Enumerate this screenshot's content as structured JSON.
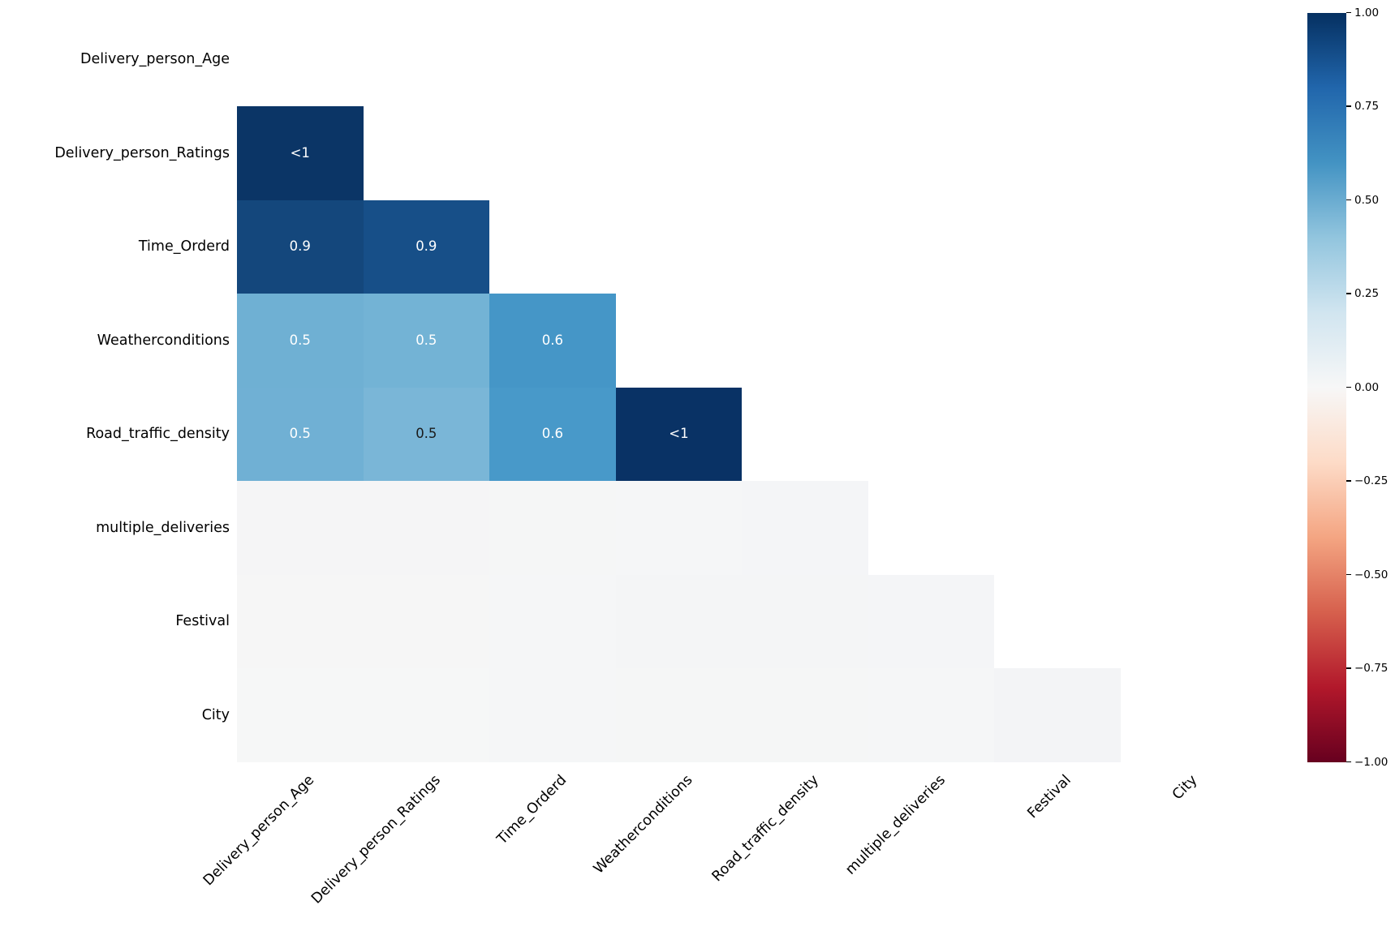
{
  "figure": {
    "background": "#ffffff",
    "description": "Lower-triangle correlation heatmap of delivery dataset features"
  },
  "chart_data": {
    "type": "heatmap",
    "title": "",
    "xlabel": "",
    "ylabel": "",
    "variables": [
      "Delivery_person_Age",
      "Delivery_person_Ratings",
      "Time_Orderd",
      "Weatherconditions",
      "Road_traffic_density",
      "multiple_deliveries",
      "Festival",
      "City"
    ],
    "mask": "upper triangle and diagonal hidden; only cells below the diagonal are drawn",
    "grid": {
      "rows": 8,
      "cols": 8
    },
    "colormap": {
      "name": "RdBu",
      "stops": [
        "#053061",
        "#2166ac",
        "#4393c3",
        "#92c5de",
        "#d1e5f0",
        "#f7f7f7",
        "#fddbc7",
        "#f4a582",
        "#d6604d",
        "#b2182b",
        "#67001f"
      ]
    },
    "colorbar": {
      "vmin": -1.0,
      "vmax": 1.0,
      "position": "right",
      "tick_labels": [
        "1.00",
        "0.75",
        "0.50",
        "0.25",
        "0.00",
        "−0.25",
        "−0.50",
        "−0.75",
        "−1.00"
      ]
    },
    "cells": [
      {
        "row": 1,
        "col": 0,
        "row_var": "Delivery_person_Ratings",
        "col_var": "Delivery_person_Age",
        "label": "<1",
        "color": "#0b3566",
        "text_color": "#ffffff"
      },
      {
        "row": 2,
        "col": 0,
        "row_var": "Time_Orderd",
        "col_var": "Delivery_person_Age",
        "label": "0.9",
        "color": "#14477c",
        "text_color": "#ffffff"
      },
      {
        "row": 2,
        "col": 1,
        "row_var": "Time_Orderd",
        "col_var": "Delivery_person_Ratings",
        "label": "0.9",
        "color": "#174f88",
        "text_color": "#ffffff"
      },
      {
        "row": 3,
        "col": 0,
        "row_var": "Weatherconditions",
        "col_var": "Delivery_person_Age",
        "label": "0.5",
        "color": "#6fb0d3",
        "text_color": "#ffffff"
      },
      {
        "row": 3,
        "col": 1,
        "row_var": "Weatherconditions",
        "col_var": "Delivery_person_Ratings",
        "label": "0.5",
        "color": "#73b3d5",
        "text_color": "#ffffff"
      },
      {
        "row": 3,
        "col": 2,
        "row_var": "Weatherconditions",
        "col_var": "Time_Orderd",
        "label": "0.6",
        "color": "#4596c7",
        "text_color": "#ffffff"
      },
      {
        "row": 4,
        "col": 0,
        "row_var": "Road_traffic_density",
        "col_var": "Delivery_person_Age",
        "label": "0.5",
        "color": "#70b0d4",
        "text_color": "#ffffff"
      },
      {
        "row": 4,
        "col": 1,
        "row_var": "Road_traffic_density",
        "col_var": "Delivery_person_Ratings",
        "label": "0.5",
        "color": "#7ab6d7",
        "text_color": "#1a1a1a"
      },
      {
        "row": 4,
        "col": 2,
        "row_var": "Road_traffic_density",
        "col_var": "Time_Orderd",
        "label": "0.6",
        "color": "#4899c9",
        "text_color": "#ffffff"
      },
      {
        "row": 4,
        "col": 3,
        "row_var": "Road_traffic_density",
        "col_var": "Weatherconditions",
        "label": "<1",
        "color": "#093265",
        "text_color": "#ffffff"
      },
      {
        "row": 5,
        "col": 0,
        "row_var": "multiple_deliveries",
        "col_var": "Delivery_person_Age",
        "label": "",
        "color": "#f5f5f6"
      },
      {
        "row": 5,
        "col": 1,
        "row_var": "multiple_deliveries",
        "col_var": "Delivery_person_Ratings",
        "label": "",
        "color": "#f5f5f6"
      },
      {
        "row": 5,
        "col": 2,
        "row_var": "multiple_deliveries",
        "col_var": "Time_Orderd",
        "label": "",
        "color": "#f5f6f6"
      },
      {
        "row": 5,
        "col": 3,
        "row_var": "multiple_deliveries",
        "col_var": "Weatherconditions",
        "label": "",
        "color": "#f5f6f7"
      },
      {
        "row": 5,
        "col": 4,
        "row_var": "multiple_deliveries",
        "col_var": "Road_traffic_density",
        "label": "",
        "color": "#f4f5f7"
      },
      {
        "row": 6,
        "col": 0,
        "row_var": "Festival",
        "col_var": "Delivery_person_Age",
        "label": "",
        "color": "#f6f6f6"
      },
      {
        "row": 6,
        "col": 1,
        "row_var": "Festival",
        "col_var": "Delivery_person_Ratings",
        "label": "",
        "color": "#f6f6f6"
      },
      {
        "row": 6,
        "col": 2,
        "row_var": "Festival",
        "col_var": "Time_Orderd",
        "label": "",
        "color": "#f5f6f7"
      },
      {
        "row": 6,
        "col": 3,
        "row_var": "Festival",
        "col_var": "Weatherconditions",
        "label": "",
        "color": "#f4f5f6"
      },
      {
        "row": 6,
        "col": 4,
        "row_var": "Festival",
        "col_var": "Road_traffic_density",
        "label": "",
        "color": "#f4f5f6"
      },
      {
        "row": 6,
        "col": 5,
        "row_var": "Festival",
        "col_var": "multiple_deliveries",
        "label": "",
        "color": "#f4f5f7"
      },
      {
        "row": 7,
        "col": 0,
        "row_var": "City",
        "col_var": "Delivery_person_Age",
        "label": "",
        "color": "#f6f7f7"
      },
      {
        "row": 7,
        "col": 1,
        "row_var": "City",
        "col_var": "Delivery_person_Ratings",
        "label": "",
        "color": "#f6f7f7"
      },
      {
        "row": 7,
        "col": 2,
        "row_var": "City",
        "col_var": "Time_Orderd",
        "label": "",
        "color": "#f5f6f7"
      },
      {
        "row": 7,
        "col": 3,
        "row_var": "City",
        "col_var": "Weatherconditions",
        "label": "",
        "color": "#f5f6f6"
      },
      {
        "row": 7,
        "col": 4,
        "row_var": "City",
        "col_var": "Road_traffic_density",
        "label": "",
        "color": "#f5f6f6"
      },
      {
        "row": 7,
        "col": 5,
        "row_var": "City",
        "col_var": "multiple_deliveries",
        "label": "",
        "color": "#f5f6f7"
      },
      {
        "row": 7,
        "col": 6,
        "row_var": "City",
        "col_var": "Festival",
        "label": "",
        "color": "#f3f4f6"
      }
    ]
  }
}
